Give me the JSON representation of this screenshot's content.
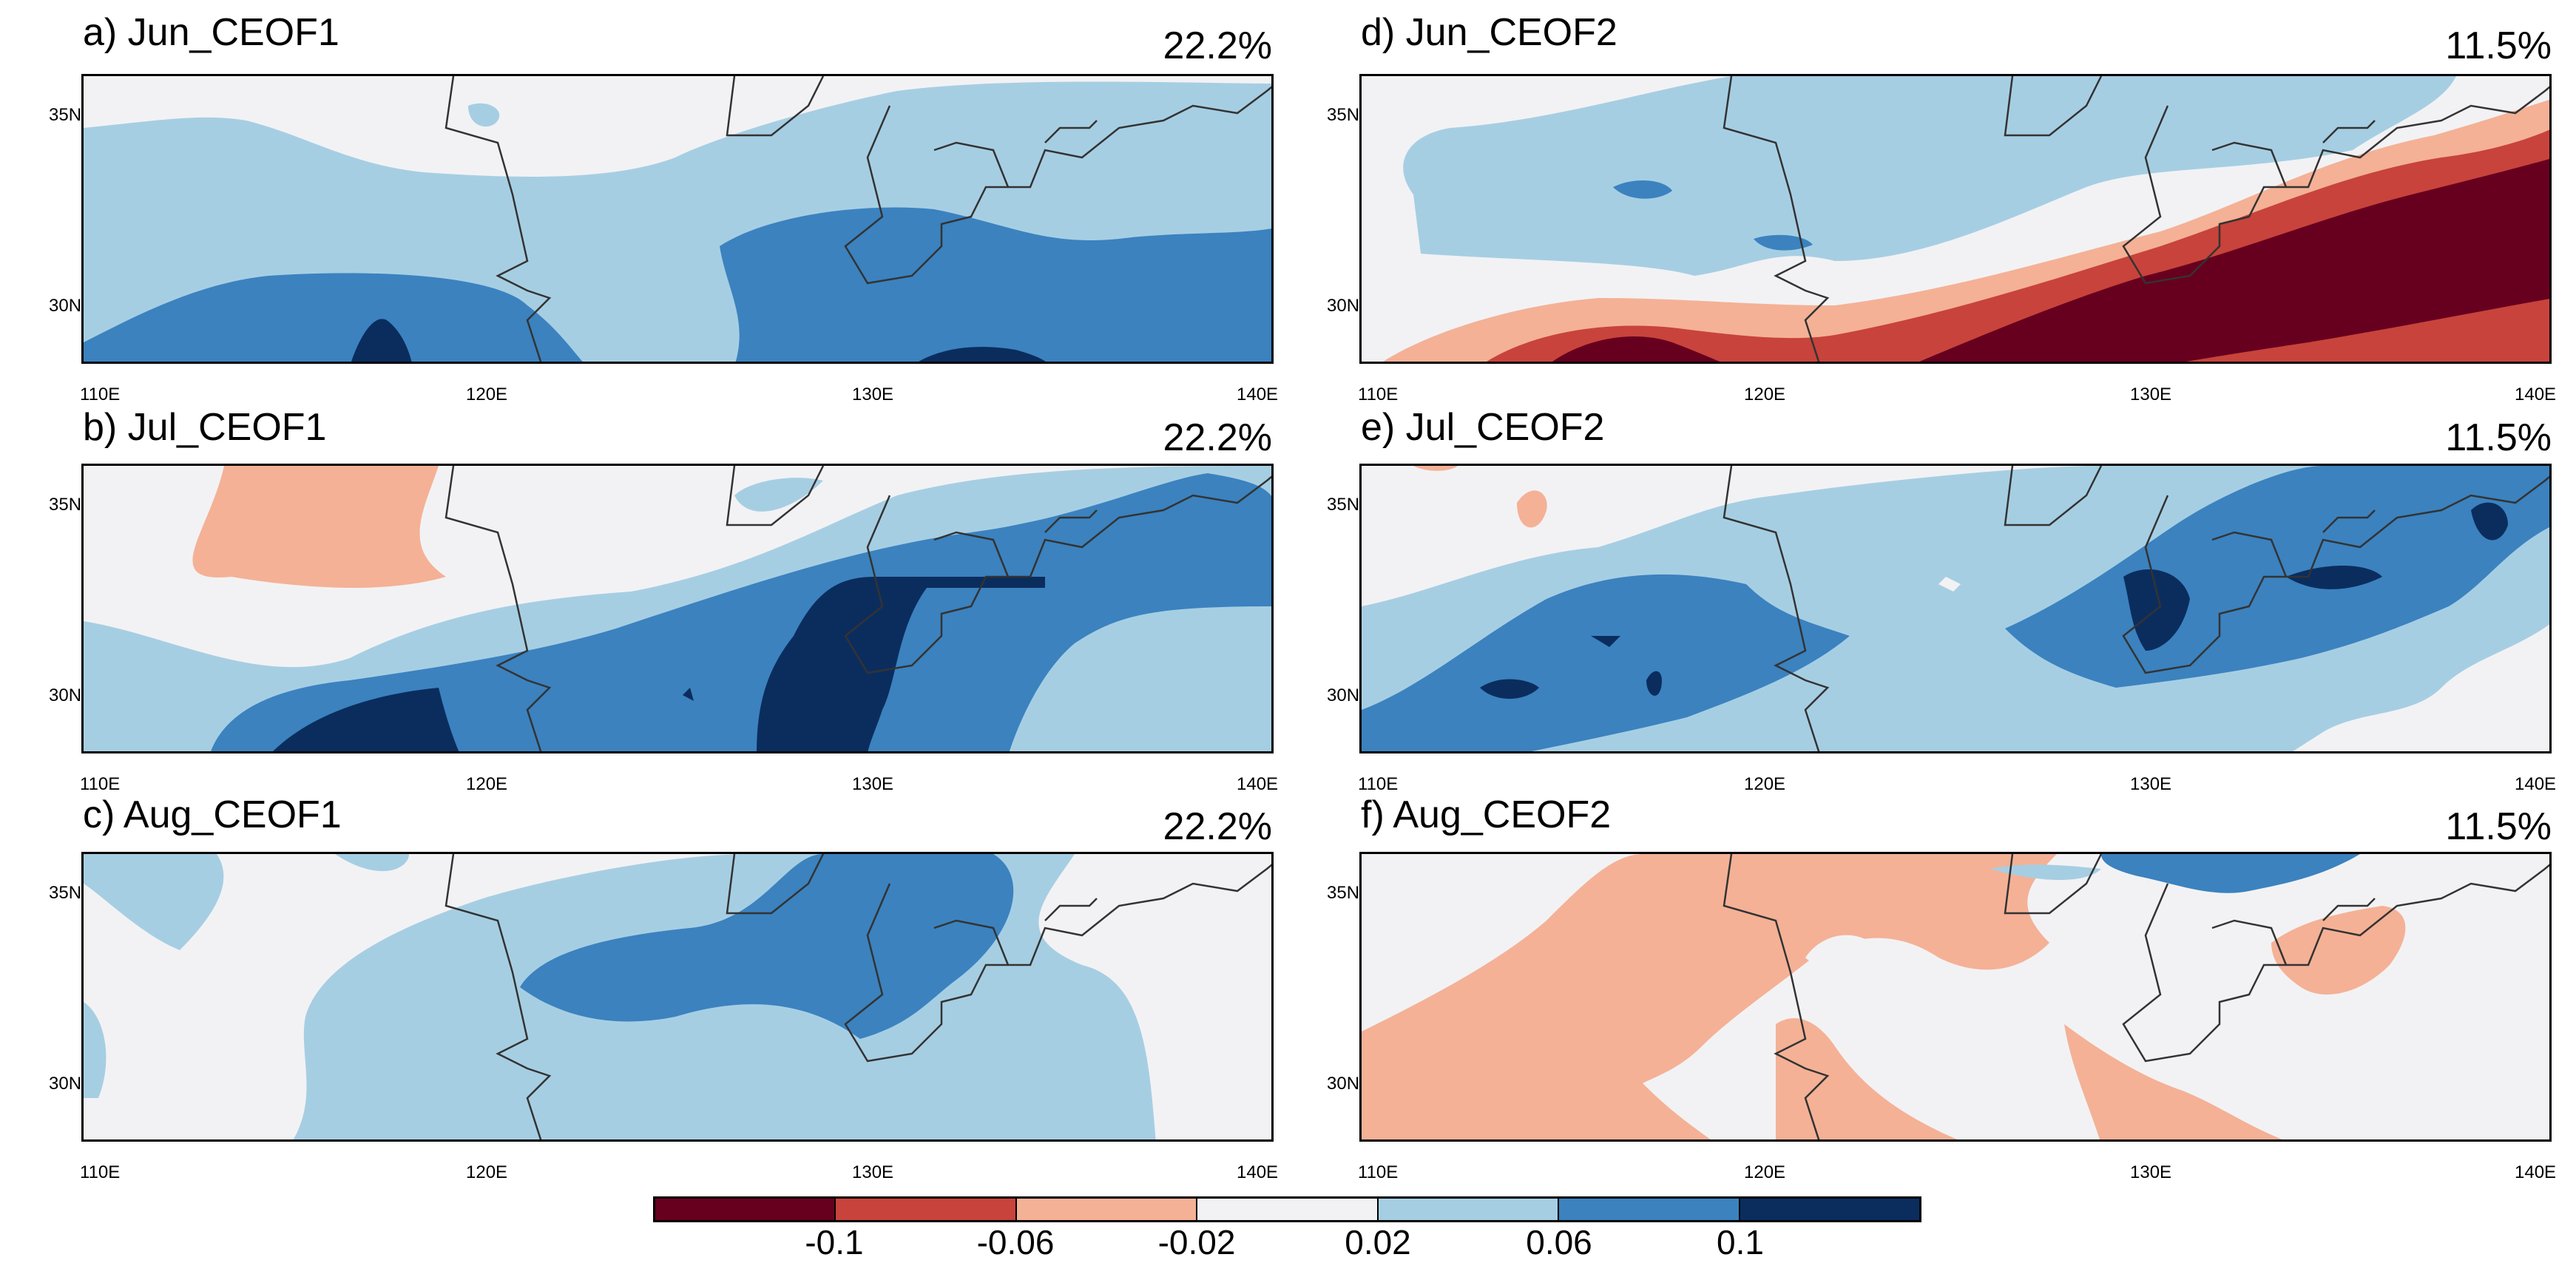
{
  "colorbar": {
    "colors": [
      "#67001f",
      "#c8433b",
      "#f4b196",
      "#f2f2f4",
      "#a6cee3",
      "#3b82bf",
      "#0b2d5e"
    ],
    "labels": [
      "-0.1",
      "-0.06",
      "-0.02",
      "0.02",
      "0.06",
      "0.1"
    ]
  },
  "axes": {
    "lon_ticks": [
      "110E",
      "120E",
      "130E",
      "140E"
    ],
    "lat_ticks": [
      "35N",
      "30N"
    ]
  },
  "panels": [
    {
      "title": "a) Jun_CEOF1",
      "variance": "22.2%"
    },
    {
      "title": "b) Jul_CEOF1",
      "variance": "22.2%"
    },
    {
      "title": "c) Aug_CEOF1",
      "variance": "22.2%"
    },
    {
      "title": "d) Jun_CEOF2",
      "variance": "11.5%"
    },
    {
      "title": "e) Jul_CEOF2",
      "variance": "11.5%"
    },
    {
      "title": "f) Aug_CEOF2",
      "variance": "11.5%"
    }
  ]
}
